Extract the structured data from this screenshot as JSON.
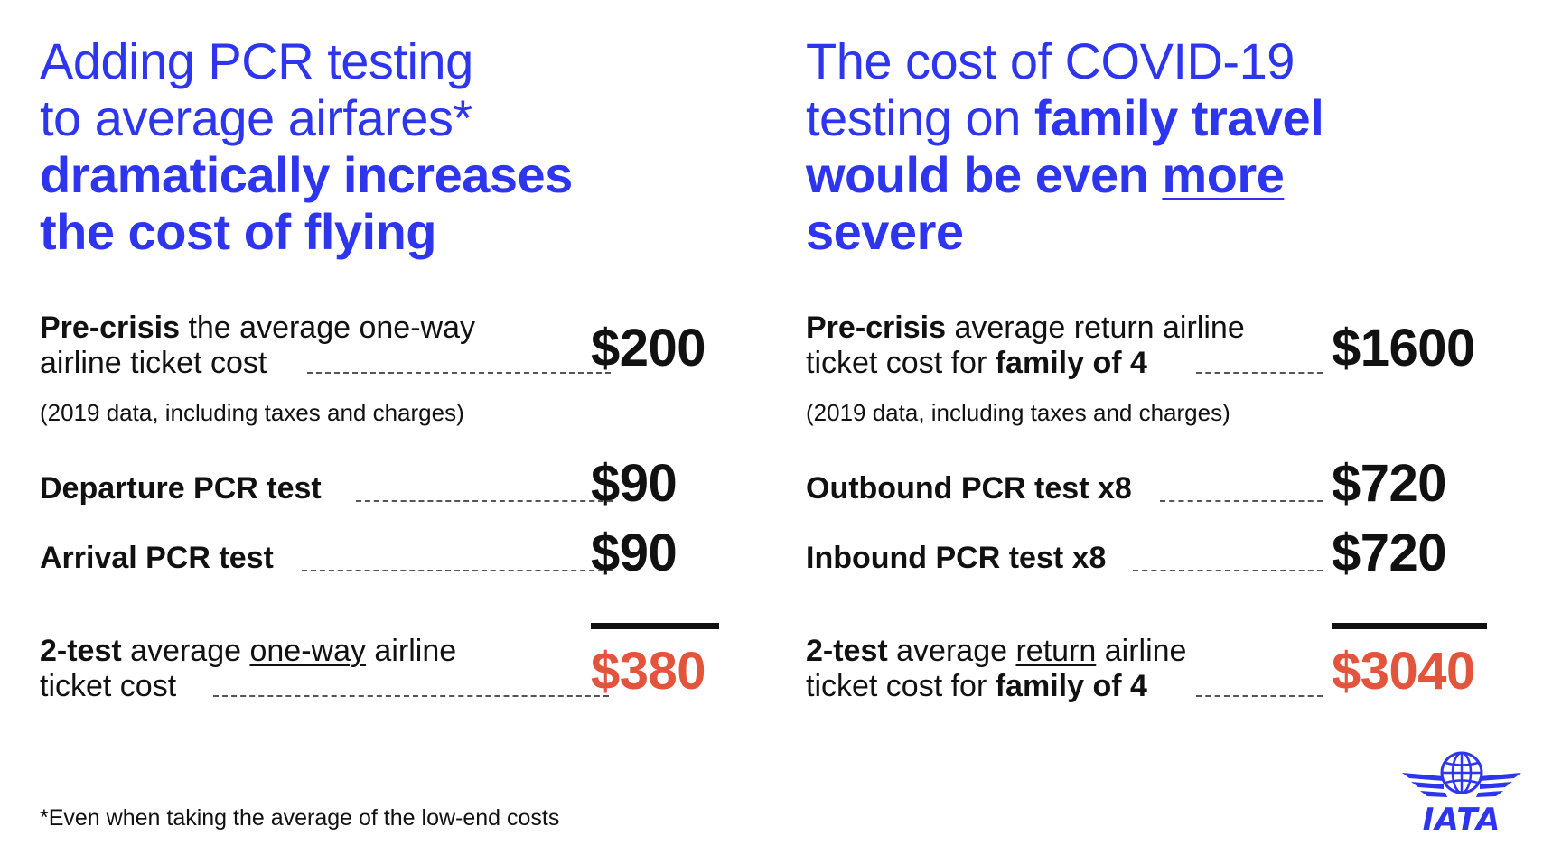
{
  "left": {
    "headline": {
      "line1": "Adding PCR testing",
      "line2": "to average airfares*",
      "line3": "dramatically increases",
      "line4": "the cost of flying"
    },
    "precrisis": {
      "bold": "Pre-crisis",
      "text_a": " the average one-way",
      "text_b": "airline ticket cost",
      "value": "$200",
      "note": "(2019 data, including taxes and charges)"
    },
    "departure": {
      "label": "Departure PCR test",
      "value": "$90"
    },
    "arrival": {
      "label": "Arrival PCR test",
      "value": "$90"
    },
    "total": {
      "bold": "2-test",
      "text_a": " average ",
      "underlined": "one-way",
      "text_b": " airline",
      "text_c": "ticket cost",
      "value": "$380"
    }
  },
  "right": {
    "headline": {
      "line1": "The cost of COVID-19",
      "line2_plain": "testing on ",
      "line2_bold": "family travel",
      "line3_bold": "would be even ",
      "line3_underlined": "more",
      "line4": "severe"
    },
    "precrisis": {
      "bold": "Pre-crisis",
      "text_a": " average return airline",
      "text_b": "ticket cost for ",
      "text_b_bold": "family of 4",
      "value": "$1600",
      "note": "(2019 data, including taxes and charges)"
    },
    "outbound": {
      "label": "Outbound PCR test x8",
      "value": "$720"
    },
    "inbound": {
      "label": "Inbound PCR test x8",
      "value": "$720"
    },
    "total": {
      "bold": "2-test",
      "text_a": " average ",
      "underlined": "return",
      "text_b": " airline",
      "text_c": "ticket cost for ",
      "text_c_bold": "family of 4",
      "value": "$3040"
    }
  },
  "footnote": "*Even when taking the average of the low-end costs",
  "logo": {
    "text": "IATA",
    "icon": "iata-globe-wings-icon"
  },
  "colors": {
    "headline_blue": "#2d35ef",
    "total_red": "#e2543b",
    "text": "#111111"
  }
}
